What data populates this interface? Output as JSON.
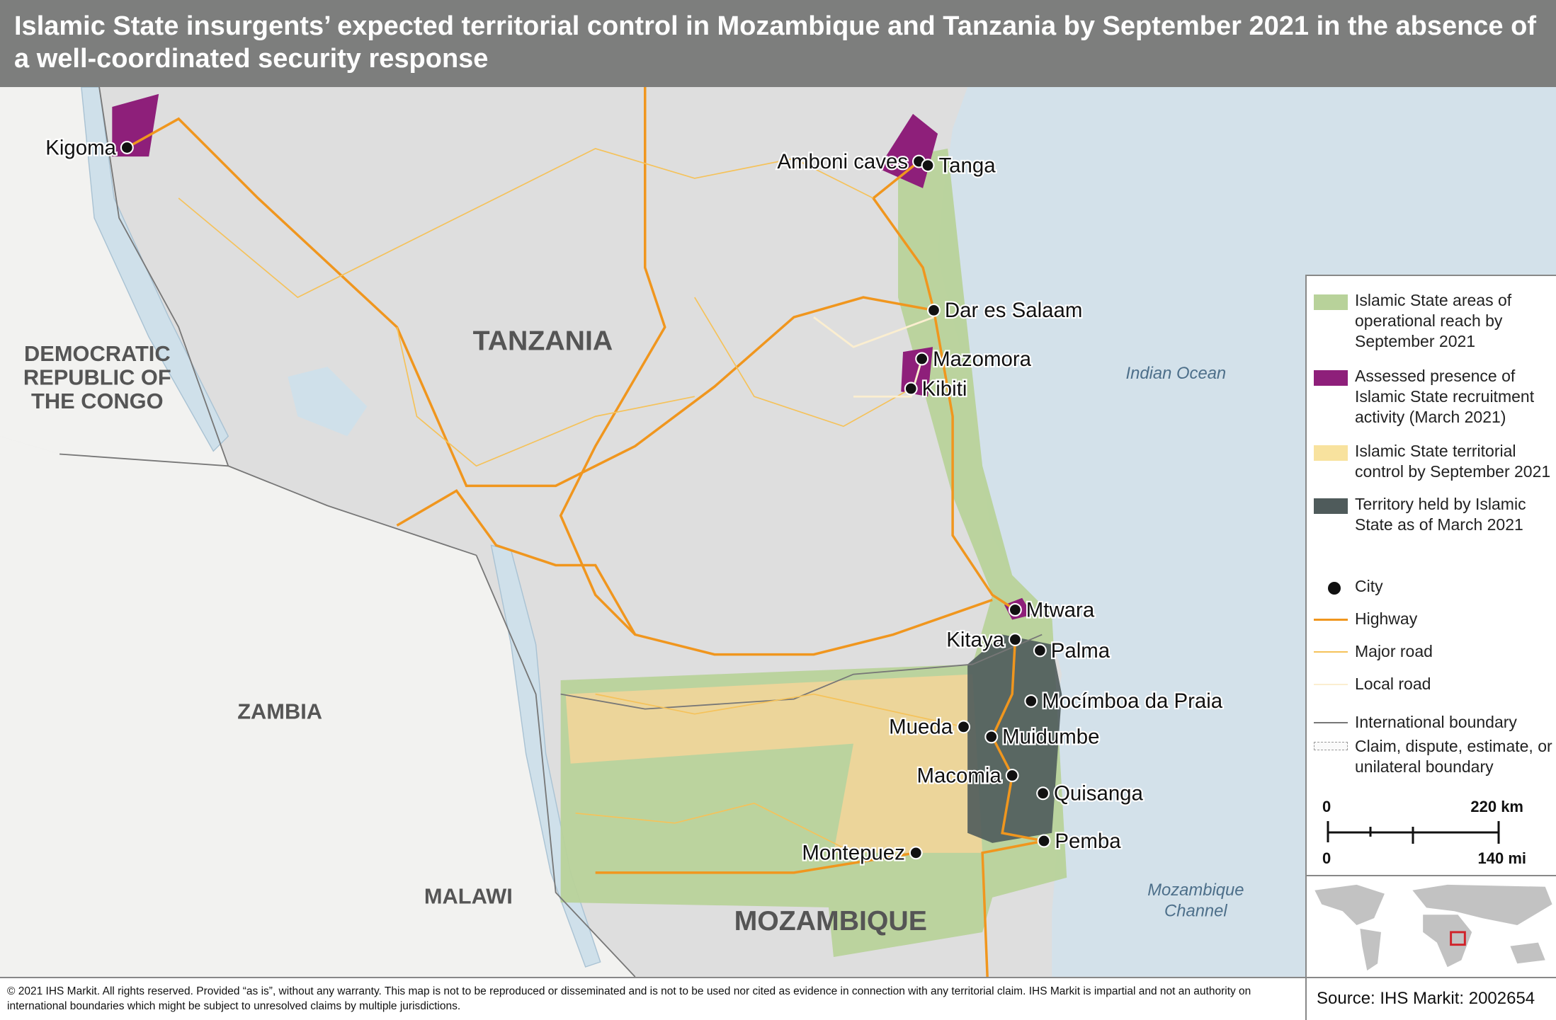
{
  "header": {
    "title": "Islamic State insurgents’ expected territorial control in Mozambique and Tanzania by September 2021 in the absence of a well-coordinated security response"
  },
  "colors": {
    "operational_reach": "#b8d29a",
    "recruitment": "#8e1f7a",
    "territorial_control": "#ecd59a",
    "territory_held": "#4f5b5b",
    "highway": "#f0961e",
    "major_road": "#f5c25a",
    "local_road": "#fbeed0",
    "ocean": "#d3e1ea",
    "land": "#dedede",
    "other_land": "#f2f2f0"
  },
  "countries": {
    "tanzania": "TANZANIA",
    "drc": [
      "DEMOCRATIC",
      "REPUBLIC OF",
      "THE CONGO"
    ],
    "zambia": "ZAMBIA",
    "malawi": "MALAWI",
    "mozambique": "MOZAMBIQUE"
  },
  "water": {
    "indian_ocean": "Indian Ocean",
    "mozambique_channel": [
      "Mozambique",
      "Channel"
    ]
  },
  "cities": [
    "Kigoma",
    "Amboni caves",
    "Tanga",
    "Dar es Salaam",
    "Mazomora",
    "Kibiti",
    "Mtwara",
    "Kitaya",
    "Palma",
    "Mocímboa da Praia",
    "Mueda",
    "Muidumbe",
    "Macomia",
    "Quisanga",
    "Pemba",
    "Montepuez"
  ],
  "legend": {
    "items": [
      {
        "label": "Islamic State areas of operational reach by September 2021",
        "icon": "green-swatch"
      },
      {
        "label": "Assessed presence of Islamic State recruitment activity (March 2021)",
        "icon": "purple-swatch"
      },
      {
        "label": "Islamic State territorial control by September 2021",
        "icon": "yellow-swatch"
      },
      {
        "label": "Territory held by Islamic State as of March 2021",
        "icon": "dark-swatch"
      },
      {
        "label": "City",
        "icon": "city-dot"
      },
      {
        "label": "Highway",
        "icon": "highway-line"
      },
      {
        "label": "Major road",
        "icon": "major-road-line"
      },
      {
        "label": "Local road",
        "icon": "local-road-line"
      },
      {
        "label": "International boundary",
        "icon": "boundary-line"
      },
      {
        "label": "Claim, dispute, estimate, or unilateral boundary",
        "icon": "dashed-boundary"
      }
    ],
    "scale": {
      "km_zero": "0",
      "km_label": "220 km",
      "mi_zero": "0",
      "mi_label": "140 mi"
    }
  },
  "footer": {
    "copyright": "© 2021 IHS Markit. All rights reserved. Provided “as is”, without any warranty. This map is not to be reproduced or disseminated and is not to be used nor cited as evidence in connection with any territorial claim. IHS Markit is impartial and not an authority on international boundaries which might be subject to unresolved claims by multiple jurisdictions.",
    "source": "Source: IHS Markit: 2002654"
  }
}
